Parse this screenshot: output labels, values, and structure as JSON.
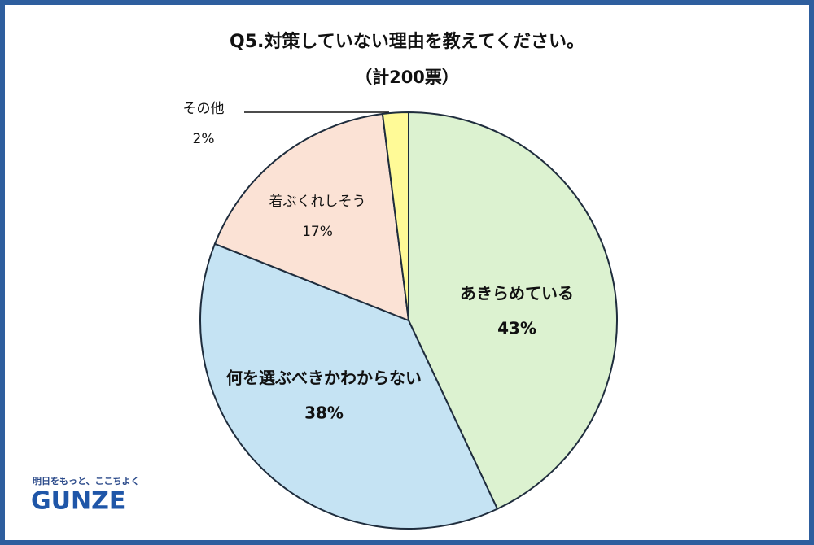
{
  "chart_data": {
    "type": "pie",
    "title": "Q5.対策していない理由を教えてください。",
    "subtitle": "（計200票）",
    "categories": [
      "あきらめている",
      "何を選ぶべきかわからない",
      "着ぶくれしそう",
      "その他"
    ],
    "values": [
      43,
      38,
      17,
      2
    ],
    "value_labels": [
      "43%",
      "38%",
      "17%",
      "2%"
    ],
    "colors": [
      "#dcf2d0",
      "#c5e3f3",
      "#fbe2d5",
      "#fffa97"
    ]
  },
  "logo": {
    "tagline": "明日をもっと、ここちよく",
    "brand": "GUNZE"
  }
}
